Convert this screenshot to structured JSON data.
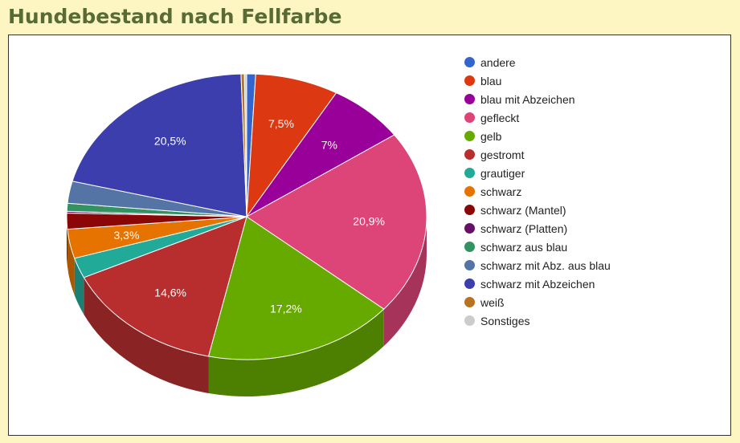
{
  "page": {
    "title": "Hundebestand nach Fellfarbe"
  },
  "chart_data": {
    "type": "pie",
    "style": "3d",
    "title": "Hundebestand nach Fellfarbe",
    "legend_position": "right",
    "slices": [
      {
        "label": "andere",
        "value": 0.8,
        "value_label": "",
        "color": "#3366cc",
        "side_color": "#264d99"
      },
      {
        "label": "blau",
        "value": 7.5,
        "value_label": "7,5%",
        "color": "#dc3912",
        "side_color": "#a52b0e"
      },
      {
        "label": "blau mit Abzeichen",
        "value": 7.0,
        "value_label": "7%",
        "color": "#990099",
        "side_color": "#730073"
      },
      {
        "label": "gefleckt",
        "value": 20.9,
        "value_label": "20,9%",
        "color": "#dd4477",
        "side_color": "#a63359"
      },
      {
        "label": "gelb",
        "value": 17.2,
        "value_label": "17,2%",
        "color": "#66aa00",
        "side_color": "#4d8000"
      },
      {
        "label": "gestromt",
        "value": 14.6,
        "value_label": "14,6%",
        "color": "#b82e2e",
        "side_color": "#8a2323"
      },
      {
        "label": "grautiger",
        "value": 2.3,
        "value_label": "",
        "color": "#22aa99",
        "side_color": "#1a8073"
      },
      {
        "label": "schwarz",
        "value": 3.3,
        "value_label": "3,3%",
        "color": "#e67300",
        "side_color": "#ad5600"
      },
      {
        "label": "schwarz (Mantel)",
        "value": 1.8,
        "value_label": "",
        "color": "#8b0707",
        "side_color": "#680505"
      },
      {
        "label": "schwarz (Platten)",
        "value": 0.2,
        "value_label": "",
        "color": "#651067",
        "side_color": "#4c0c4d"
      },
      {
        "label": "schwarz aus blau",
        "value": 0.9,
        "value_label": "",
        "color": "#329262",
        "side_color": "#266e4a"
      },
      {
        "label": "schwarz mit Abz. aus blau",
        "value": 2.5,
        "value_label": "",
        "color": "#5574a6",
        "side_color": "#40577d"
      },
      {
        "label": "schwarz mit Abzeichen",
        "value": 20.5,
        "value_label": "20,5%",
        "color": "#3b3eac",
        "side_color": "#2c2f81"
      },
      {
        "label": "weiß",
        "value": 0.3,
        "value_label": "",
        "color": "#b77322",
        "side_color": "#89561a"
      },
      {
        "label": "Sonstiges",
        "value": 0.2,
        "value_label": "",
        "color": "#cccccc",
        "side_color": "#999999"
      }
    ]
  }
}
